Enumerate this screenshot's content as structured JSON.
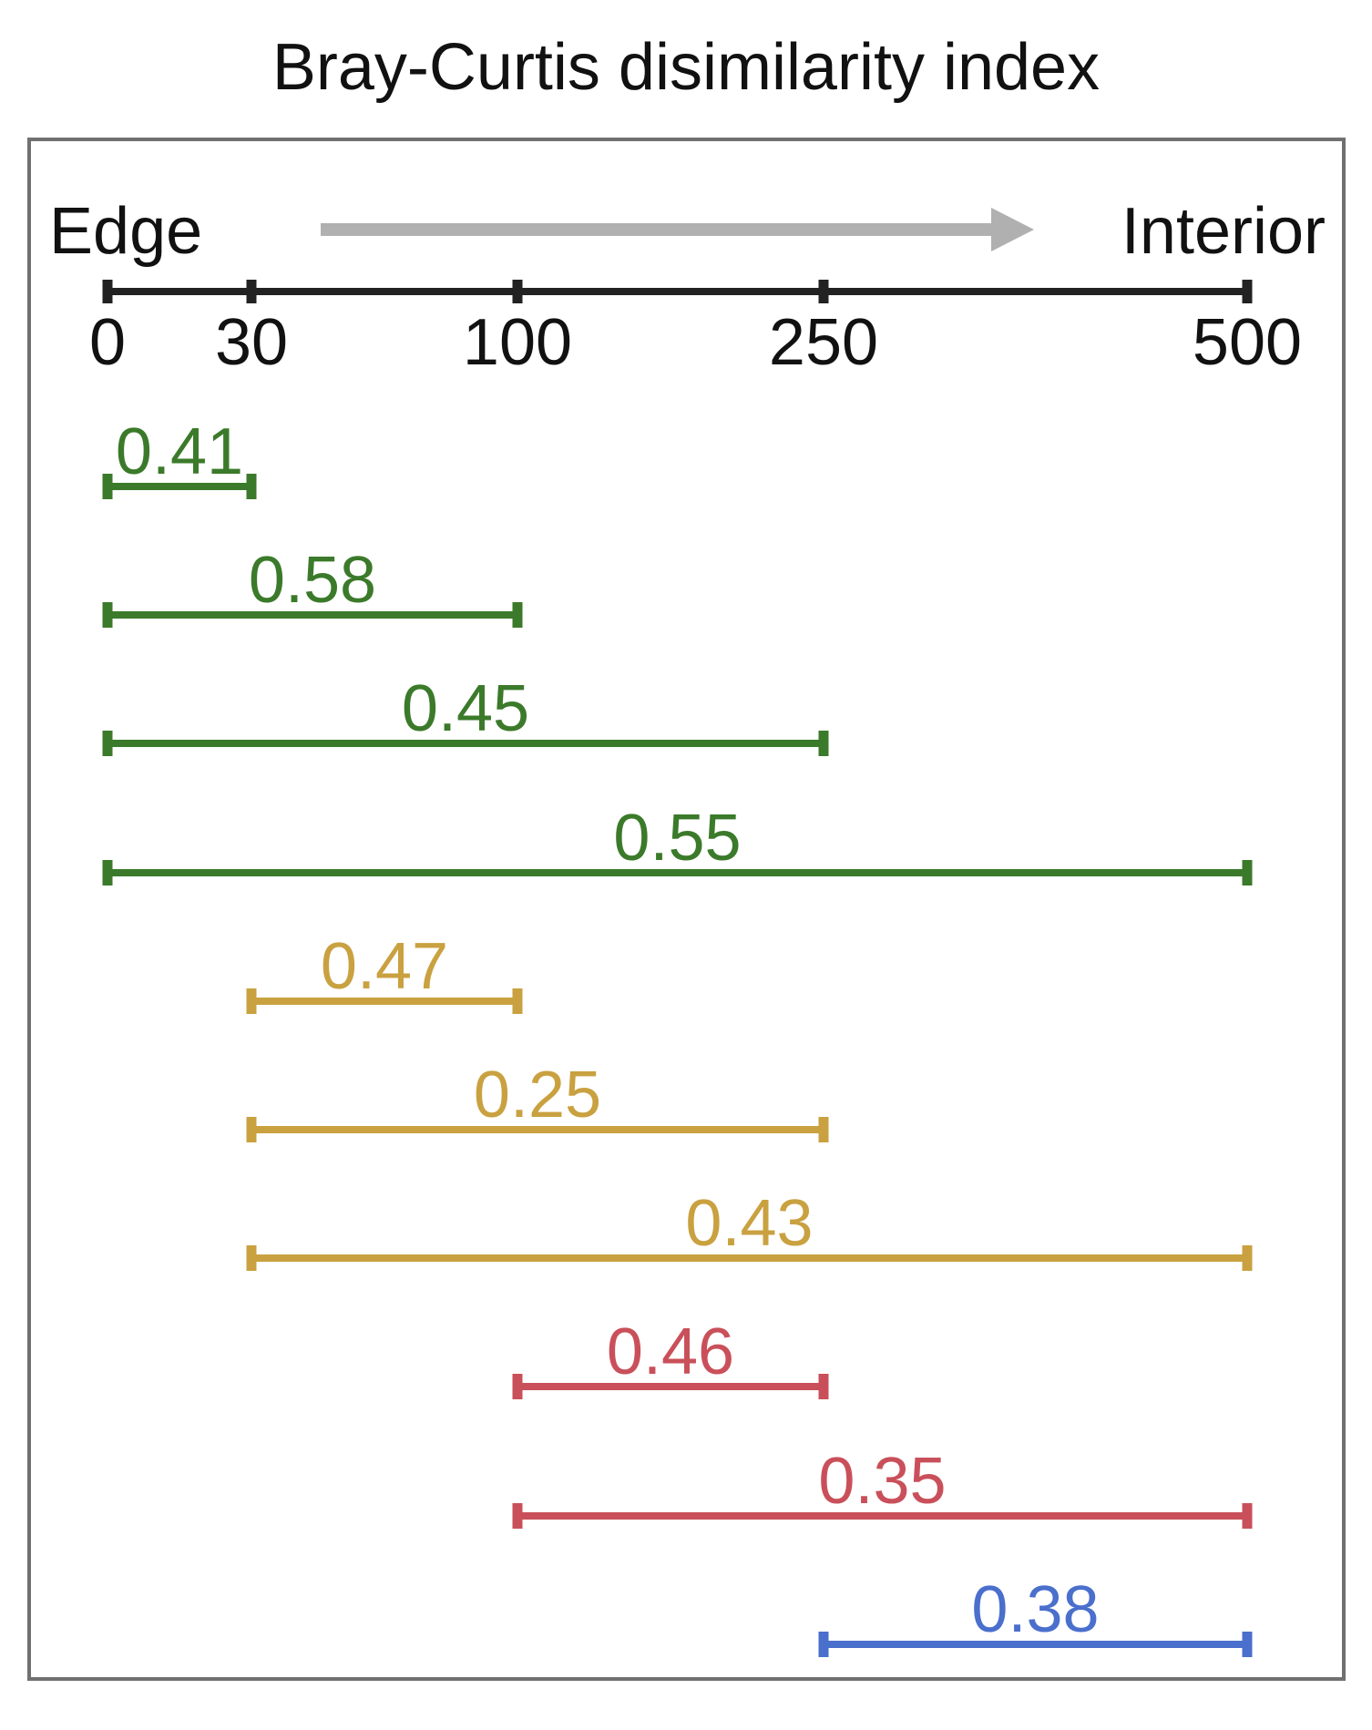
{
  "title": "Bray-Curtis disimilarity index",
  "axis": {
    "start_label": "Edge",
    "end_label": "Interior",
    "ticks": [
      0,
      30,
      100,
      250,
      500
    ],
    "tick_labels": [
      "0",
      "30",
      "100",
      "250",
      "500"
    ]
  },
  "colors": {
    "axis": "#222222",
    "arrow": "#b0b0b0",
    "frame": "#707070",
    "from_0": "#3b7a2a",
    "from_30": "#c9a140",
    "from_100": "#c9505a",
    "from_250": "#4a6fcc"
  },
  "comparisons": [
    {
      "from": 0,
      "to": 30,
      "value": "0.41",
      "color_key": "from_0"
    },
    {
      "from": 0,
      "to": 100,
      "value": "0.58",
      "color_key": "from_0"
    },
    {
      "from": 0,
      "to": 250,
      "value": "0.45",
      "color_key": "from_0"
    },
    {
      "from": 0,
      "to": 500,
      "value": "0.55",
      "color_key": "from_0"
    },
    {
      "from": 30,
      "to": 100,
      "value": "0.47",
      "color_key": "from_30"
    },
    {
      "from": 30,
      "to": 250,
      "value": "0.25",
      "color_key": "from_30"
    },
    {
      "from": 30,
      "to": 500,
      "value": "0.43",
      "color_key": "from_30"
    },
    {
      "from": 100,
      "to": 250,
      "value": "0.46",
      "color_key": "from_100"
    },
    {
      "from": 100,
      "to": 500,
      "value": "0.35",
      "color_key": "from_100"
    },
    {
      "from": 250,
      "to": 500,
      "value": "0.38",
      "color_key": "from_250"
    }
  ]
}
